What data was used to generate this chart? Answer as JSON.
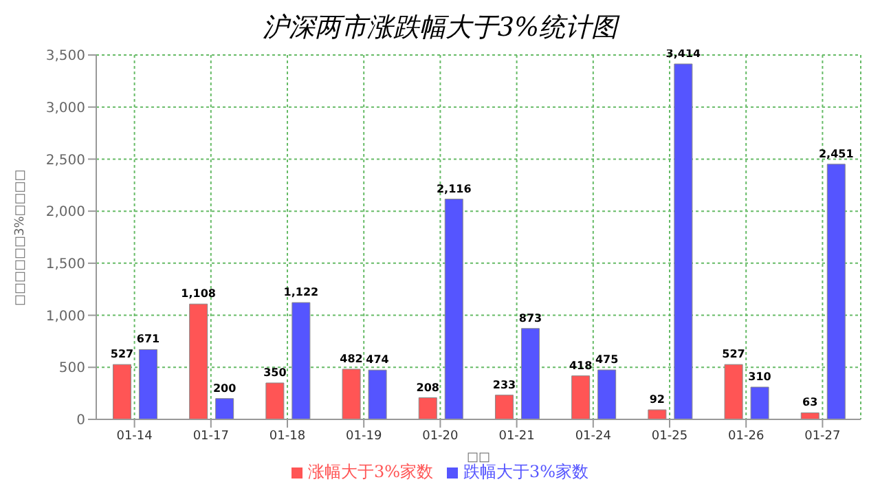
{
  "chart_data": {
    "type": "bar",
    "title": "沪深两市涨跌幅大于3%统计图",
    "xlabel": "□□",
    "ylabel": "□□□□□□3%□□□□",
    "categories": [
      "01-14",
      "01-17",
      "01-18",
      "01-19",
      "01-20",
      "01-21",
      "01-24",
      "01-25",
      "01-26",
      "01-27"
    ],
    "series": [
      {
        "name": "涨幅大于3%家数",
        "color": "#ff5555",
        "values": [
          527,
          1108,
          350,
          482,
          208,
          233,
          418,
          92,
          527,
          63
        ],
        "value_labels": [
          "527",
          "1,108",
          "350",
          "482",
          "208",
          "233",
          "418",
          "92",
          "527",
          "63"
        ]
      },
      {
        "name": "跌幅大于3%家数",
        "color": "#5555ff",
        "values": [
          671,
          200,
          1122,
          474,
          2116,
          873,
          475,
          3414,
          310,
          2451
        ],
        "value_labels": [
          "671",
          "200",
          "1,122",
          "474",
          "2,116",
          "873",
          "475",
          "3,414",
          "310",
          "2,451"
        ]
      }
    ],
    "ylim": [
      0,
      3500
    ],
    "yticks": [
      0,
      500,
      {
        "value": 1000,
        "label": "1,000"
      },
      {
        "value": 1500,
        "label": "1,500"
      },
      {
        "value": 2000,
        "label": "2,000"
      },
      {
        "value": 2500,
        "label": "2,500"
      },
      {
        "value": 3000,
        "label": "3,000"
      },
      {
        "value": 3500,
        "label": "3,500"
      }
    ],
    "grid": true,
    "legend": "bottom"
  }
}
